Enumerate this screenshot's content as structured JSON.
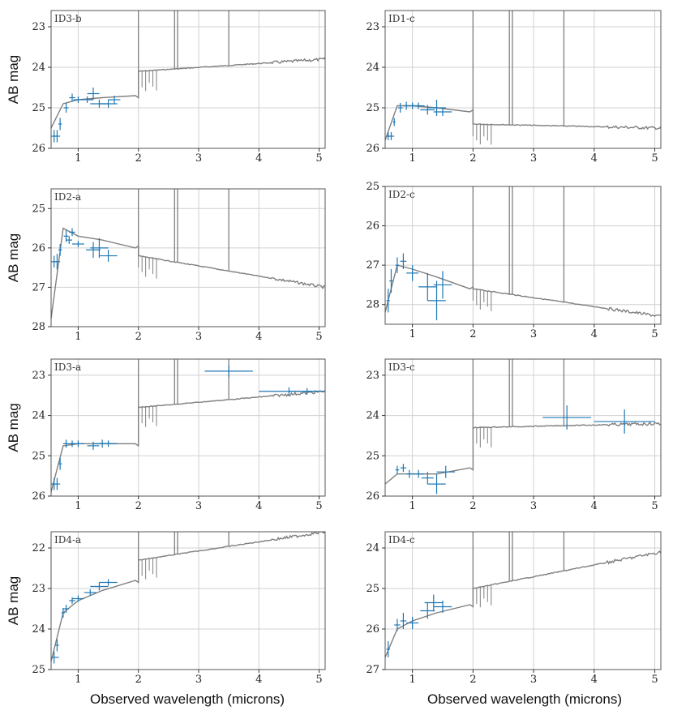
{
  "figure": {
    "ylabel": "AB mag",
    "xlabel": "Observed wavelength (microns)",
    "colors": {
      "model": "#7f7f7f",
      "photometry": "#1f77b4",
      "grid": "#d0d0d0",
      "frame": "#555555"
    }
  },
  "chart_data": [
    {
      "id": "ID3-b",
      "type": "line",
      "label": "ID3-b",
      "xlabel": "",
      "ylabel": "AB mag",
      "xlim": [
        0.55,
        5.1
      ],
      "ylim": [
        26,
        22.6
      ],
      "xticks": [
        1,
        2,
        3,
        4,
        5
      ],
      "yticks": [
        23,
        24,
        25,
        26
      ],
      "model": {
        "blue": [
          25.5,
          24.9,
          24.8,
          24.75,
          24.7
        ],
        "red": [
          24.1,
          23.8
        ],
        "breakUp": true
      },
      "points": [
        [
          0.6,
          25.7,
          0.05,
          0.15
        ],
        [
          0.65,
          25.7,
          0.05,
          0.15
        ],
        [
          0.7,
          25.4,
          0.03,
          0.15
        ],
        [
          0.8,
          25.0,
          0.04,
          0.12
        ],
        [
          0.9,
          24.75,
          0.05,
          0.1
        ],
        [
          1.0,
          24.8,
          0.08,
          0.08
        ],
        [
          1.15,
          24.8,
          0.1,
          0.08
        ],
        [
          1.25,
          24.65,
          0.1,
          0.15
        ],
        [
          1.35,
          24.9,
          0.15,
          0.1
        ],
        [
          1.5,
          24.9,
          0.15,
          0.1
        ],
        [
          1.6,
          24.8,
          0.1,
          0.1
        ]
      ]
    },
    {
      "id": "ID1-c",
      "type": "line",
      "label": "ID1-c",
      "xlabel": "",
      "ylabel": "",
      "xlim": [
        0.55,
        5.1
      ],
      "ylim": [
        26,
        22.6
      ],
      "xticks": [
        1,
        2,
        3,
        4,
        5
      ],
      "yticks": [
        23,
        24,
        25,
        26
      ],
      "model": {
        "blue": [
          25.8,
          24.95,
          24.95,
          25.0,
          25.1
        ],
        "red": [
          25.4,
          25.5
        ],
        "breakUp": false
      },
      "points": [
        [
          0.6,
          25.7,
          0.03,
          0.1
        ],
        [
          0.65,
          25.7,
          0.05,
          0.1
        ],
        [
          0.7,
          25.35,
          0.02,
          0.1
        ],
        [
          0.8,
          25.0,
          0.04,
          0.12
        ],
        [
          0.9,
          24.95,
          0.05,
          0.1
        ],
        [
          1.0,
          24.95,
          0.1,
          0.08
        ],
        [
          1.1,
          24.95,
          0.1,
          0.08
        ],
        [
          1.25,
          25.05,
          0.12,
          0.12
        ],
        [
          1.4,
          25.0,
          0.15,
          0.2
        ],
        [
          1.5,
          25.1,
          0.15,
          0.1
        ]
      ]
    },
    {
      "id": "ID2-a",
      "type": "line",
      "label": "ID2-a",
      "xlabel": "",
      "ylabel": "AB mag",
      "xlim": [
        0.55,
        5.1
      ],
      "ylim": [
        28,
        24.5
      ],
      "xticks": [
        1,
        2,
        3,
        4,
        5
      ],
      "yticks": [
        25,
        26,
        27,
        28
      ],
      "model": {
        "blue": [
          27.8,
          25.5,
          25.7,
          25.8,
          26.0
        ],
        "red": [
          26.2,
          27.0
        ],
        "breakUp": false
      },
      "points": [
        [
          0.6,
          26.35,
          0.05,
          0.15
        ],
        [
          0.65,
          26.35,
          0.05,
          0.2
        ],
        [
          0.7,
          26.05,
          0.03,
          0.15
        ],
        [
          0.8,
          25.7,
          0.04,
          0.15
        ],
        [
          0.85,
          25.8,
          0.05,
          0.1
        ],
        [
          0.9,
          25.6,
          0.05,
          0.1
        ],
        [
          1.0,
          25.9,
          0.1,
          0.08
        ],
        [
          1.25,
          26.05,
          0.12,
          0.2
        ],
        [
          1.35,
          26.0,
          0.15,
          0.25
        ],
        [
          1.5,
          26.2,
          0.15,
          0.15
        ]
      ]
    },
    {
      "id": "ID2-c",
      "type": "line",
      "label": "ID2-c",
      "xlabel": "",
      "ylabel": "",
      "xlim": [
        0.55,
        5.1
      ],
      "ylim": [
        28.5,
        25
      ],
      "xticks": [
        1,
        2,
        3,
        4,
        5
      ],
      "yticks": [
        25,
        26,
        27,
        28
      ],
      "model": {
        "blue": [
          28.2,
          27.0,
          27.1,
          27.3,
          27.6
        ],
        "red": [
          27.6,
          28.3
        ],
        "breakUp": false
      },
      "points": [
        [
          0.6,
          27.9,
          0.03,
          0.3
        ],
        [
          0.65,
          27.4,
          0.03,
          0.3
        ],
        [
          0.75,
          27.0,
          0.03,
          0.2
        ],
        [
          0.85,
          26.9,
          0.05,
          0.2
        ],
        [
          1.0,
          27.2,
          0.1,
          0.2
        ],
        [
          1.25,
          27.55,
          0.15,
          0.35
        ],
        [
          1.4,
          27.9,
          0.15,
          0.5
        ],
        [
          1.5,
          27.5,
          0.15,
          0.35
        ]
      ]
    },
    {
      "id": "ID3-a",
      "type": "line",
      "label": "ID3-a",
      "xlabel": "",
      "ylabel": "AB mag",
      "xlim": [
        0.55,
        5.1
      ],
      "ylim": [
        26,
        22.6
      ],
      "xticks": [
        1,
        2,
        3,
        4,
        5
      ],
      "yticks": [
        23,
        24,
        25,
        26
      ],
      "model": {
        "blue": [
          25.9,
          24.75,
          24.7,
          24.7,
          24.7
        ],
        "red": [
          23.8,
          23.4
        ],
        "breakUp": true
      },
      "points": [
        [
          0.6,
          25.7,
          0.05,
          0.15
        ],
        [
          0.65,
          25.7,
          0.05,
          0.15
        ],
        [
          0.7,
          25.2,
          0.03,
          0.15
        ],
        [
          0.8,
          24.7,
          0.05,
          0.1
        ],
        [
          0.9,
          24.7,
          0.05,
          0.08
        ],
        [
          1.0,
          24.7,
          0.1,
          0.08
        ],
        [
          1.25,
          24.75,
          0.1,
          0.1
        ],
        [
          1.4,
          24.7,
          0.15,
          0.1
        ],
        [
          1.5,
          24.7,
          0.15,
          0.08
        ],
        [
          3.5,
          22.9,
          0.4,
          0.15
        ],
        [
          4.5,
          23.4,
          0.5,
          0.1
        ],
        [
          4.8,
          23.4,
          0.3,
          0.08
        ]
      ]
    },
    {
      "id": "ID3-c",
      "type": "line",
      "label": "ID3-c",
      "xlabel": "",
      "ylabel": "",
      "xlim": [
        0.55,
        5.1
      ],
      "ylim": [
        26,
        22.6
      ],
      "xticks": [
        1,
        2,
        3,
        4,
        5
      ],
      "yticks": [
        23,
        24,
        25,
        26
      ],
      "model": {
        "blue": [
          25.7,
          25.45,
          25.45,
          25.45,
          25.3
        ],
        "red": [
          24.3,
          24.2
        ],
        "breakUp": true
      },
      "points": [
        [
          0.75,
          25.35,
          0.03,
          0.1
        ],
        [
          0.85,
          25.3,
          0.05,
          0.1
        ],
        [
          0.95,
          25.45,
          0.05,
          0.1
        ],
        [
          1.1,
          25.45,
          0.1,
          0.1
        ],
        [
          1.25,
          25.55,
          0.1,
          0.15
        ],
        [
          1.4,
          25.7,
          0.15,
          0.25
        ],
        [
          1.55,
          25.4,
          0.15,
          0.15
        ],
        [
          3.55,
          24.05,
          0.4,
          0.3
        ],
        [
          4.5,
          24.15,
          0.5,
          0.3
        ]
      ]
    },
    {
      "id": "ID4-a",
      "type": "line",
      "label": "ID4-a",
      "xlabel": "Observed wavelength (microns)",
      "ylabel": "AB mag",
      "xlim": [
        0.55,
        5.1
      ],
      "ylim": [
        25,
        21.6
      ],
      "xticks": [
        1,
        2,
        3,
        4,
        5
      ],
      "yticks": [
        22,
        23,
        24,
        25
      ],
      "model": {
        "blue": [
          24.8,
          23.6,
          23.3,
          23.05,
          22.8
        ],
        "red": [
          22.3,
          21.6
        ],
        "breakUp": true
      },
      "points": [
        [
          0.6,
          24.7,
          0.08,
          0.15
        ],
        [
          0.65,
          24.4,
          0.03,
          0.15
        ],
        [
          0.75,
          23.6,
          0.03,
          0.12
        ],
        [
          0.8,
          23.5,
          0.05,
          0.1
        ],
        [
          0.9,
          23.3,
          0.05,
          0.08
        ],
        [
          1.0,
          23.25,
          0.1,
          0.08
        ],
        [
          1.2,
          23.1,
          0.1,
          0.08
        ],
        [
          1.35,
          22.95,
          0.15,
          0.1
        ],
        [
          1.5,
          22.85,
          0.15,
          0.08
        ]
      ]
    },
    {
      "id": "ID4-c",
      "type": "line",
      "label": "ID4-c",
      "xlabel": "Observed wavelength (microns)",
      "ylabel": "",
      "xlim": [
        0.55,
        5.1
      ],
      "ylim": [
        27,
        23.6
      ],
      "xticks": [
        1,
        2,
        3,
        4,
        5
      ],
      "yticks": [
        24,
        25,
        26,
        27
      ],
      "model": {
        "blue": [
          26.7,
          26.0,
          25.8,
          25.6,
          25.4
        ],
        "red": [
          25.0,
          24.1
        ],
        "breakUp": true
      },
      "points": [
        [
          0.6,
          26.5,
          0.03,
          0.2
        ],
        [
          0.75,
          25.9,
          0.05,
          0.15
        ],
        [
          0.85,
          25.8,
          0.05,
          0.2
        ],
        [
          1.0,
          25.85,
          0.1,
          0.15
        ],
        [
          1.25,
          25.55,
          0.12,
          0.2
        ],
        [
          1.35,
          25.35,
          0.15,
          0.2
        ],
        [
          1.5,
          25.45,
          0.15,
          0.15
        ]
      ]
    }
  ]
}
